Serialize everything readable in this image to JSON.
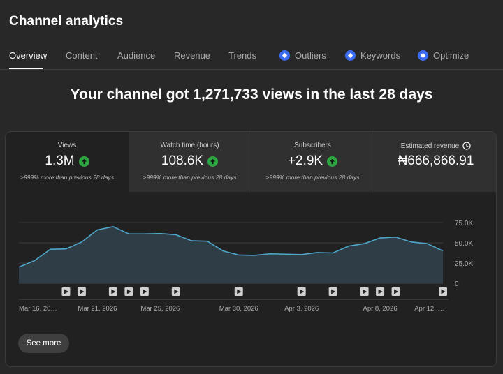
{
  "page": {
    "title": "Channel analytics"
  },
  "tabs": [
    {
      "label": "Overview",
      "active": true
    },
    {
      "label": "Content"
    },
    {
      "label": "Audience"
    },
    {
      "label": "Revenue"
    },
    {
      "label": "Trends"
    },
    {
      "label": "Outliers",
      "icon": "vidiq-badge-icon"
    },
    {
      "label": "Keywords",
      "icon": "vidiq-badge-icon"
    },
    {
      "label": "Optimize",
      "icon": "vidiq-badge-icon"
    }
  ],
  "headline": "Your channel got 1,271,733 views in the last 28 days",
  "metrics": [
    {
      "label": "Views",
      "value": "1.3M",
      "sub": ">999% more than previous 28 days",
      "trend": "up"
    },
    {
      "label": "Watch time (hours)",
      "value": "108.6K",
      "sub": ">999% more than previous 28 days",
      "trend": "up"
    },
    {
      "label": "Subscribers",
      "value": "+2.9K",
      "sub": ">999% more than previous 28 days",
      "trend": "up"
    },
    {
      "label": "Estimated revenue",
      "value": "₦666,866.91",
      "icon": "clock-icon"
    }
  ],
  "colors": {
    "accent_line": "#4fa6c9",
    "area_fill": "#2f3d47",
    "trend_up": "#2ba640",
    "badge": "#3b6cf2"
  },
  "chart_data": {
    "type": "area",
    "x": [
      "Mar 16",
      "Mar 17",
      "Mar 18",
      "Mar 19",
      "Mar 20",
      "Mar 21",
      "Mar 22",
      "Mar 23",
      "Mar 24",
      "Mar 25",
      "Mar 26",
      "Mar 27",
      "Mar 28",
      "Mar 29",
      "Mar 30",
      "Mar 31",
      "Apr 1",
      "Apr 2",
      "Apr 3",
      "Apr 4",
      "Apr 5",
      "Apr 6",
      "Apr 7",
      "Apr 8",
      "Apr 9",
      "Apr 10",
      "Apr 11",
      "Apr 12"
    ],
    "values": [
      20000,
      28000,
      42000,
      42500,
      51000,
      66000,
      70000,
      61000,
      61000,
      61500,
      60000,
      52500,
      52000,
      40000,
      35000,
      34500,
      36500,
      36000,
      35500,
      38000,
      37500,
      46000,
      49000,
      56000,
      57000,
      51000,
      49000,
      40000
    ],
    "y_ticks": [
      "0",
      "25.0K",
      "50.0K",
      "75.0K"
    ],
    "ylim": [
      0,
      75000
    ],
    "x_tick_labels": [
      {
        "index": 0,
        "label": "Mar 16, 20…"
      },
      {
        "index": 5,
        "label": "Mar 21, 2026"
      },
      {
        "index": 9,
        "label": "Mar 25, 2026"
      },
      {
        "index": 14,
        "label": "Mar 30, 2026"
      },
      {
        "index": 18,
        "label": "Apr 3, 2026"
      },
      {
        "index": 23,
        "label": "Apr 8, 2026"
      },
      {
        "index": 27,
        "label": "Apr 12, …"
      }
    ],
    "video_markers": [
      3,
      4,
      6,
      7,
      8,
      10,
      14,
      18,
      20,
      22,
      23,
      24,
      27
    ],
    "grid": true
  },
  "buttons": {
    "see_more": "See more"
  }
}
